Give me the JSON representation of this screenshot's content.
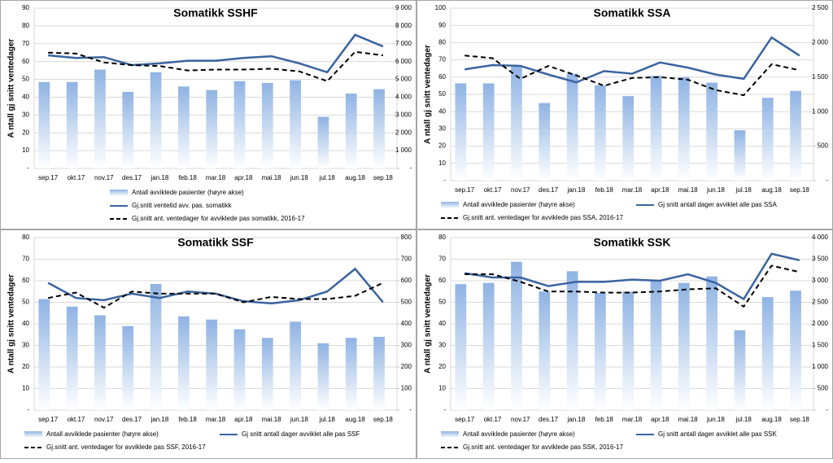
{
  "chart_data": [
    {
      "type": "combo",
      "title": "Somatikk SSHF",
      "y_label": "A ntall gj snitt ventedager",
      "categories": [
        "sep.17",
        "okt.17",
        "nov.17",
        "des.17",
        "jan.18",
        "feb.18",
        "mar.18",
        "apr.18",
        "mai.18",
        "jun.18",
        "jul.18",
        "aug.18",
        "sep.18"
      ],
      "ylim": [
        0,
        90
      ],
      "yticks": [
        {
          "value": 0,
          "label": "-"
        },
        10,
        20,
        30,
        40,
        50,
        60,
        70,
        80,
        90
      ],
      "y2lim": [
        0,
        9000
      ],
      "y2ticks": [
        {
          "value": 0,
          "label": "-"
        },
        {
          "value": 1000,
          "label": "1 000"
        },
        {
          "value": 2000,
          "label": "2 000"
        },
        {
          "value": 3000,
          "label": "3 000"
        },
        {
          "value": 4000,
          "label": "4 000"
        },
        {
          "value": 5000,
          "label": "5 000"
        },
        {
          "value": 6000,
          "label": "6 000"
        },
        {
          "value": 7000,
          "label": "7 000"
        },
        {
          "value": 8000,
          "label": "8 000"
        },
        {
          "value": 9000,
          "label": "9 000"
        }
      ],
      "grid": true,
      "series": [
        {
          "name": "Antall avviklede pasienter (høyre akse)",
          "type": "bar",
          "axis": "y2",
          "color": "#8fb3e3",
          "values": [
            4850,
            4850,
            5550,
            4300,
            5400,
            4600,
            4400,
            4900,
            4800,
            4950,
            2900,
            4200,
            4450
          ]
        },
        {
          "name": "Gj.snitt ventetid avv. pas. somatikk",
          "type": "line",
          "color": "#3a64a0",
          "dashed": false,
          "values": [
            63.5,
            62,
            62.5,
            58,
            59,
            60.5,
            60.5,
            62,
            63,
            59,
            54,
            75,
            68.5
          ]
        },
        {
          "name": "Gj.snitt ant. ventedager for avviklede pas somatikk, 2016-17",
          "type": "line",
          "color": "#000000",
          "dashed": true,
          "values": [
            65,
            64.5,
            59.5,
            58,
            57.5,
            55,
            55.5,
            55.5,
            56,
            54.5,
            49,
            65.5,
            63.5
          ]
        }
      ]
    },
    {
      "type": "combo",
      "title": "Somatikk SSA",
      "y_label": "A ntall gj snitt ventedager",
      "categories": [
        "sep.17",
        "okt.17",
        "nov.17",
        "des.17",
        "jan.18",
        "feb.18",
        "mar.18",
        "apr.18",
        "mai.18",
        "jun.18",
        "jul.18",
        "aug.18",
        "sep.18"
      ],
      "ylim": [
        0,
        100
      ],
      "yticks": [
        {
          "value": 0,
          "label": "-"
        },
        10,
        20,
        30,
        40,
        50,
        60,
        70,
        80,
        90,
        100
      ],
      "y2lim": [
        0,
        2500
      ],
      "y2ticks": [
        {
          "value": 0,
          "label": "-"
        },
        500,
        {
          "value": 1000,
          "label": "1 000"
        },
        {
          "value": 1500,
          "label": "1 500"
        },
        {
          "value": 2000,
          "label": "2 000"
        },
        {
          "value": 2500,
          "label": "2 500"
        }
      ],
      "grid": true,
      "series": [
        {
          "name": "Antall avviklede pasienter (høyre akse)",
          "type": "bar",
          "axis": "y2",
          "color": "#8fb3e3",
          "values": [
            1410,
            1410,
            1650,
            1125,
            1550,
            1380,
            1225,
            1520,
            1500,
            1420,
            730,
            1200,
            1300
          ]
        },
        {
          "name": "Gj snitt antall dager avviklet alle pas SSA",
          "type": "line",
          "color": "#3a64a0",
          "dashed": false,
          "values": [
            64.5,
            67,
            66.5,
            61.5,
            57,
            63.5,
            62,
            68.5,
            65.5,
            61.5,
            59,
            83,
            72.5
          ]
        },
        {
          "name": "Gj.snitt ant. ventedager for avviklede pas SSA, 2016-17",
          "type": "line",
          "color": "#000000",
          "dashed": true,
          "values": [
            72.5,
            71,
            59,
            66.5,
            61,
            55,
            59.5,
            60,
            58.5,
            52.5,
            49.5,
            67.5,
            64
          ]
        }
      ]
    },
    {
      "type": "combo",
      "title": "Somatikk SSF",
      "y_label": "A ntall gj snitt ventedager",
      "categories": [
        "sep.17",
        "okt.17",
        "nov.17",
        "des.17",
        "jan.18",
        "feb.18",
        "mar.18",
        "apr.18",
        "mai.18",
        "jun.18",
        "jul.18",
        "aug.18",
        "sep.18"
      ],
      "ylim": [
        0,
        80
      ],
      "yticks": [
        {
          "value": 0,
          "label": "-"
        },
        10,
        20,
        30,
        40,
        50,
        60,
        70,
        80
      ],
      "y2lim": [
        0,
        800
      ],
      "y2ticks": [
        {
          "value": 0,
          "label": "-"
        },
        100,
        200,
        300,
        400,
        500,
        600,
        700,
        800
      ],
      "grid": true,
      "series": [
        {
          "name": "Antall avviklede pasienter (høyre akse)",
          "type": "bar",
          "axis": "y2",
          "color": "#8fb3e3",
          "values": [
            515,
            480,
            440,
            390,
            585,
            435,
            420,
            375,
            335,
            410,
            310,
            335,
            340
          ]
        },
        {
          "name": "Gj snitt antall dager avviklet alle pas SSF",
          "type": "line",
          "color": "#3a64a0",
          "dashed": false,
          "values": [
            59,
            52,
            51,
            54,
            52,
            55,
            54,
            50.5,
            49.5,
            51,
            55,
            65.5,
            50
          ]
        },
        {
          "name": "Gj.snitt ant. ventedager for avviklede pas SSF, 2016-17",
          "type": "line",
          "color": "#000000",
          "dashed": true,
          "values": [
            52,
            54.5,
            47.5,
            55,
            54,
            54,
            54,
            50,
            52.5,
            51.5,
            51.5,
            53,
            59
          ]
        }
      ]
    },
    {
      "type": "combo",
      "title": "Somatikk SSK",
      "y_label": "A ntall gj snitt ventedager",
      "categories": [
        "sep.17",
        "okt.17",
        "nov.17",
        "des.17",
        "jan.18",
        "feb.18",
        "mar.18",
        "apr.18",
        "mai.18",
        "jun.18",
        "jul.18",
        "aug.18",
        "sep.18"
      ],
      "ylim": [
        0,
        80
      ],
      "yticks": [
        {
          "value": 0,
          "label": "-"
        },
        10,
        20,
        30,
        40,
        50,
        60,
        70,
        80
      ],
      "y2lim": [
        0,
        4000
      ],
      "y2ticks": [
        {
          "value": 0,
          "label": "-"
        },
        500,
        {
          "value": 1000,
          "label": "1 000"
        },
        {
          "value": 1500,
          "label": "1 500"
        },
        {
          "value": 2000,
          "label": "2 000"
        },
        {
          "value": 2500,
          "label": "2 500"
        },
        {
          "value": 3000,
          "label": "3 000"
        },
        {
          "value": 3500,
          "label": "3 500"
        },
        {
          "value": 4000,
          "label": "4 000"
        }
      ],
      "grid": true,
      "series": [
        {
          "name": "Antall avviklede pasienter (høyre akse)",
          "type": "bar",
          "axis": "y2",
          "color": "#8fb3e3",
          "values": [
            2920,
            2950,
            3440,
            2750,
            3220,
            2720,
            2750,
            3000,
            2950,
            3100,
            1850,
            2620,
            2770
          ]
        },
        {
          "name": "Gj snitt antall dager avviklet alle pas SSK",
          "type": "line",
          "color": "#3a64a0",
          "dashed": false,
          "values": [
            63.5,
            61.5,
            61.5,
            57.5,
            59.5,
            59.5,
            60.5,
            60,
            63,
            59,
            51.5,
            72.5,
            69.5
          ]
        },
        {
          "name": "Gj.snitt ant. ventedager for avviklede pas SSK, 2016-17",
          "type": "line",
          "color": "#000000",
          "dashed": true,
          "values": [
            63,
            63,
            59.5,
            55,
            55,
            54.5,
            54.5,
            55,
            56,
            56.5,
            48,
            67,
            64
          ]
        }
      ]
    }
  ]
}
